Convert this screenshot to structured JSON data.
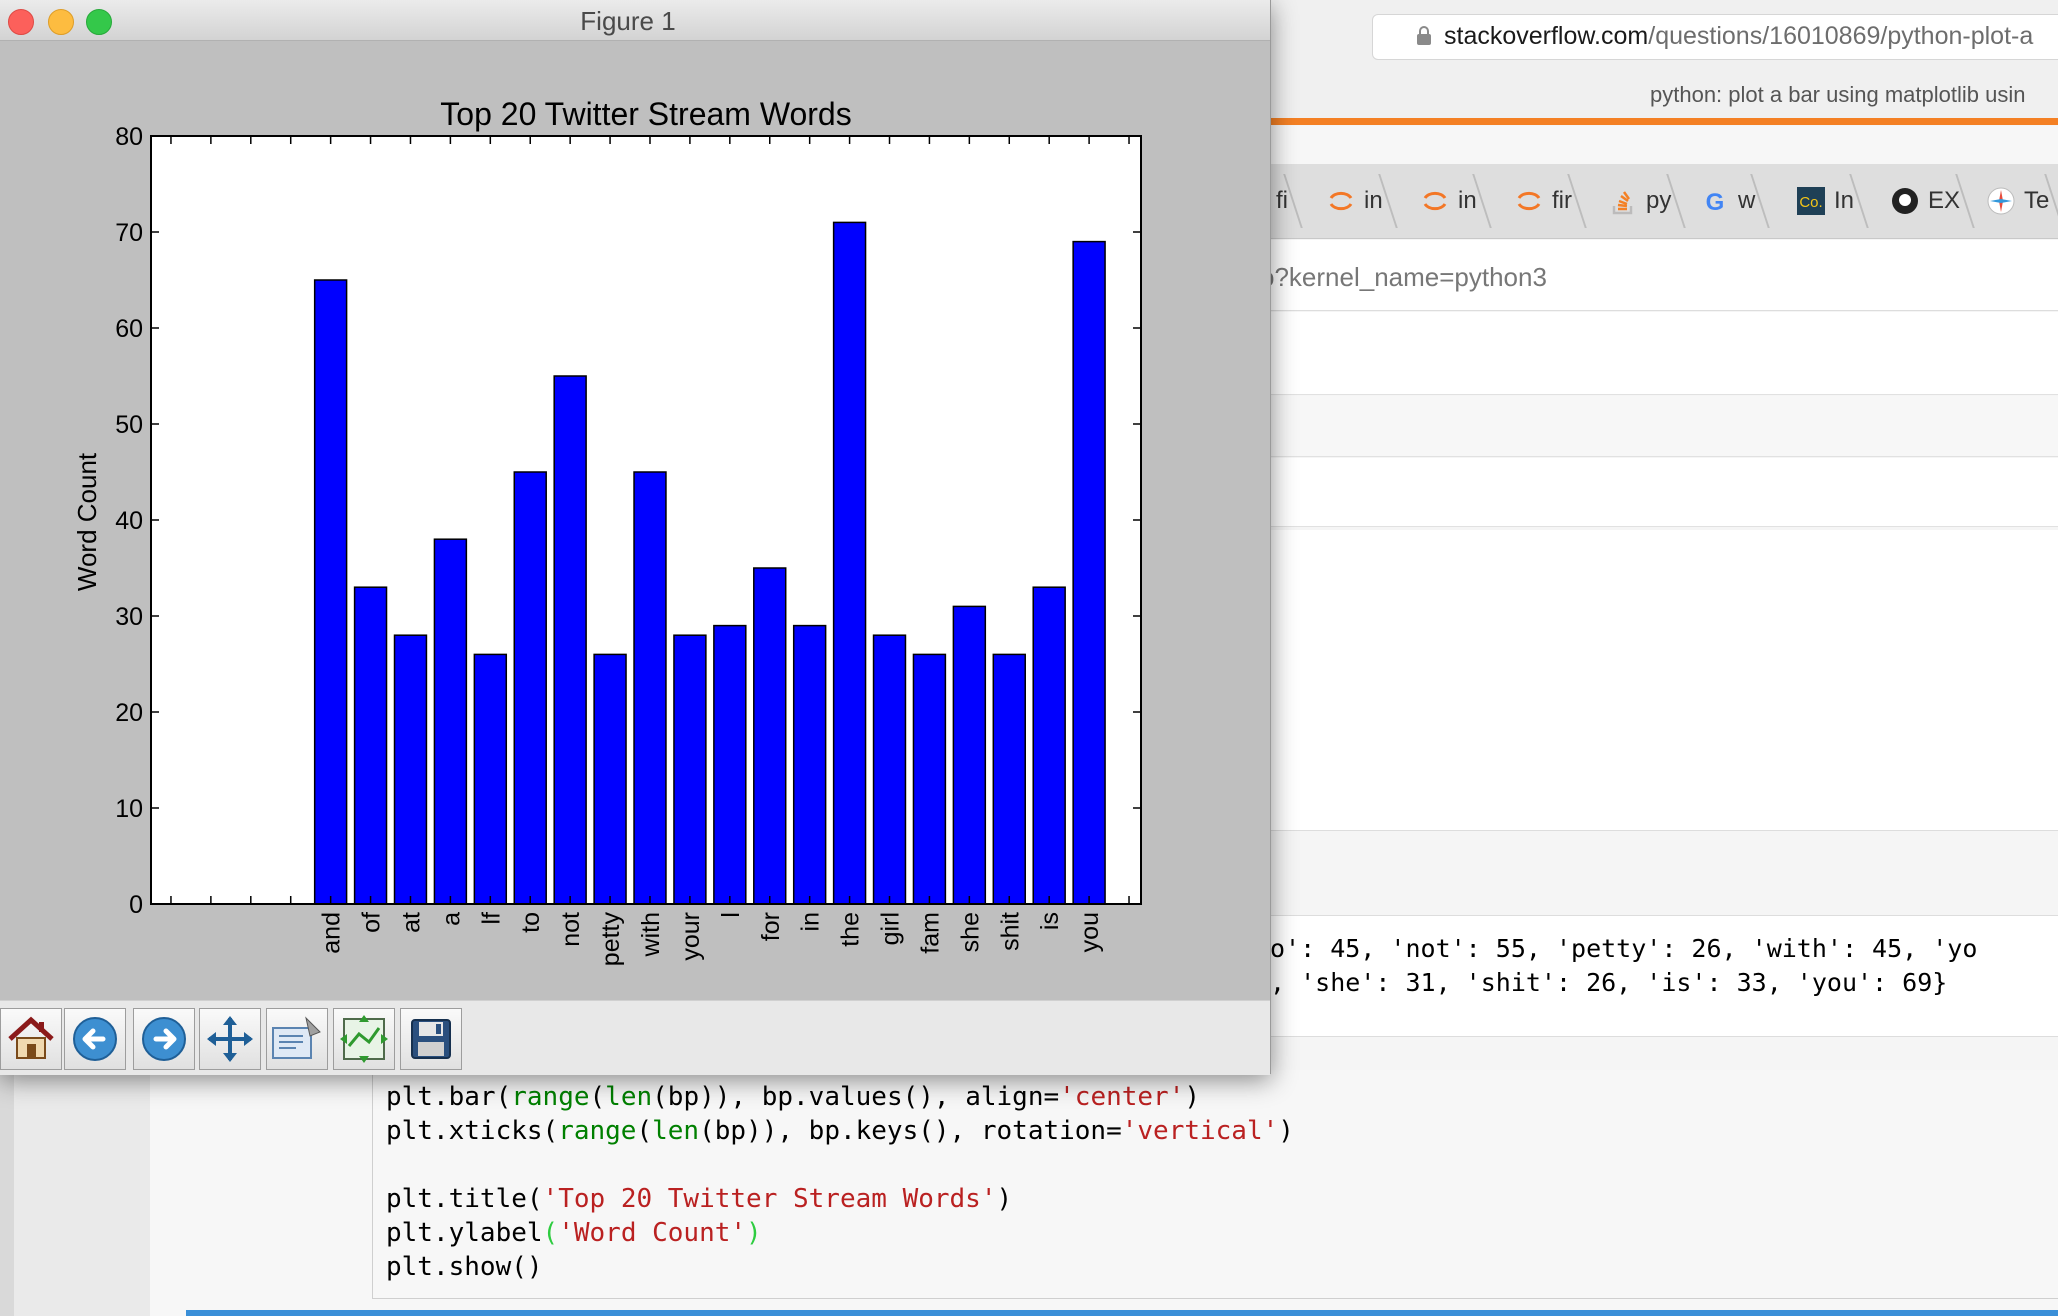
{
  "window": {
    "title": "Figure 1"
  },
  "browser": {
    "address_host": "stackoverflow.com",
    "address_path": "/questions/16010869/python-plot-a",
    "page_title": "python: plot a bar using matplotlib usin",
    "tabs": [
      {
        "label": "fi",
        "icon": "page-icon"
      },
      {
        "label": "in",
        "icon": "jupyter-icon"
      },
      {
        "label": "in",
        "icon": "jupyter-icon"
      },
      {
        "label": "fir",
        "icon": "jupyter-icon"
      },
      {
        "label": "py",
        "icon": "stackoverflow-icon"
      },
      {
        "label": "w",
        "icon": "google-icon"
      },
      {
        "label": "In",
        "icon": "codecademy-icon"
      },
      {
        "label": "EX",
        "icon": "github-icon"
      },
      {
        "label": "Te",
        "icon": "pinwheel-icon"
      }
    ],
    "notebook_url": "o?kernel_name=python3"
  },
  "notebook": {
    "output_line1": "o': 45, 'not': 55, 'petty': 26, 'with': 45, 'yo",
    "output_line2": ", 'she': 31, 'shit': 26, 'is': 33, 'you': 69}",
    "code_line1_a": "plt.bar(",
    "code_line1_b": "range",
    "code_line1_c": "(",
    "code_line1_d": "len",
    "code_line1_e": "(bp)), bp.values(), align=",
    "code_line1_f": "'center'",
    "code_line1_g": ")",
    "code_line2_a": "plt.xticks(",
    "code_line2_b": "range",
    "code_line2_c": "(",
    "code_line2_d": "len",
    "code_line2_e": "(bp)), bp.keys(), rotation=",
    "code_line2_f": "'vertical'",
    "code_line2_g": ")",
    "code_line3_a": "plt.title(",
    "code_line3_b": "'Top 20 Twitter Stream Words'",
    "code_line3_c": ")",
    "code_line4_a": "plt.ylabel",
    "code_line4_b": "(",
    "code_line4_c": "'Word Count'",
    "code_line4_d": ")",
    "code_line5": "plt.show()"
  },
  "toolbar": {
    "buttons": [
      {
        "name": "home",
        "icon": "home-icon"
      },
      {
        "name": "back",
        "icon": "back-arrow-icon"
      },
      {
        "name": "forward",
        "icon": "forward-arrow-icon"
      },
      {
        "name": "pan",
        "icon": "pan-move-icon"
      },
      {
        "name": "zoom",
        "icon": "zoom-rect-icon"
      },
      {
        "name": "configure",
        "icon": "subplots-icon"
      },
      {
        "name": "save",
        "icon": "save-icon"
      }
    ]
  },
  "chart_data": {
    "type": "bar",
    "title": "Top 20 Twitter Stream Words",
    "xlabel": "",
    "ylabel": "Word Count",
    "ylim": [
      0,
      80
    ],
    "yticks": [
      0,
      10,
      20,
      30,
      40,
      50,
      60,
      70,
      80
    ],
    "xlim": [
      -4.5,
      20.3
    ],
    "categories": [
      "and",
      "of",
      "at",
      "a",
      "lf",
      "to",
      "not",
      "petty",
      "with",
      "your",
      "l",
      "for",
      "in",
      "the",
      "girl",
      "fam",
      "she",
      "shit",
      "is",
      "you"
    ],
    "values": [
      65,
      33,
      28,
      38,
      26,
      45,
      55,
      26,
      45,
      28,
      29,
      35,
      29,
      71,
      28,
      26,
      31,
      26,
      33,
      69
    ],
    "bar_color": "#0000ff",
    "grid": false
  }
}
